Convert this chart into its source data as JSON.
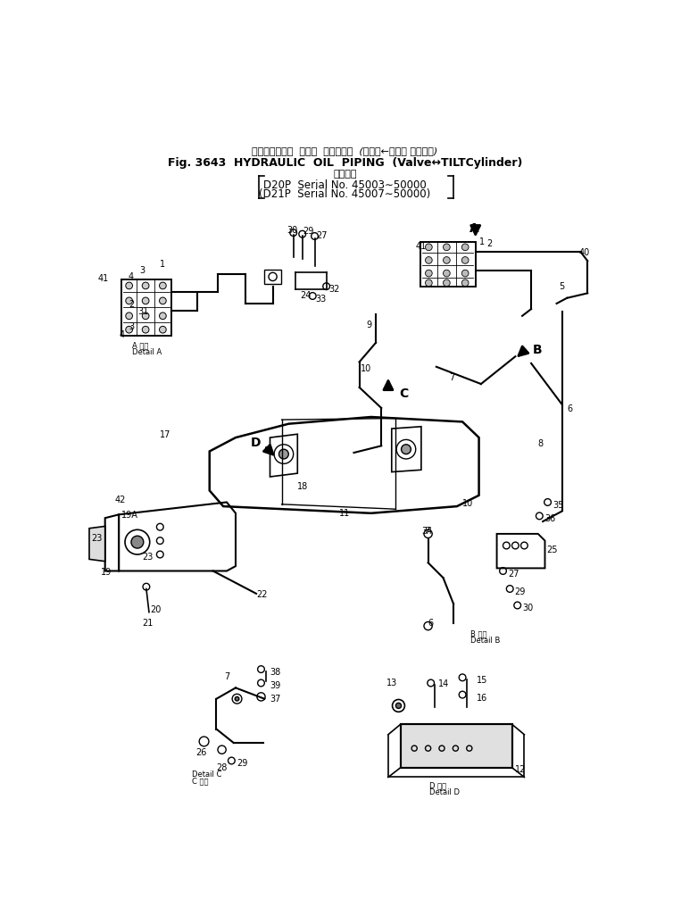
{
  "title_jp": "ハイドロリック  オイル  パイピング  (バルブ←チルト シリンダ)",
  "title_en": "Fig. 3643  HYDRAULIC  OIL  PIPING  (Valve↔TILTCylinder)",
  "subtitle_jp": "適用号機",
  "subtitle1": "D20P  Serial No. 45003∼50000",
  "subtitle2": "(D21P  Serial No. 45007∼50000)",
  "bg_color": "#ffffff",
  "line_color": "#000000",
  "fig_width": 7.54,
  "fig_height": 10.17,
  "dpi": 100
}
